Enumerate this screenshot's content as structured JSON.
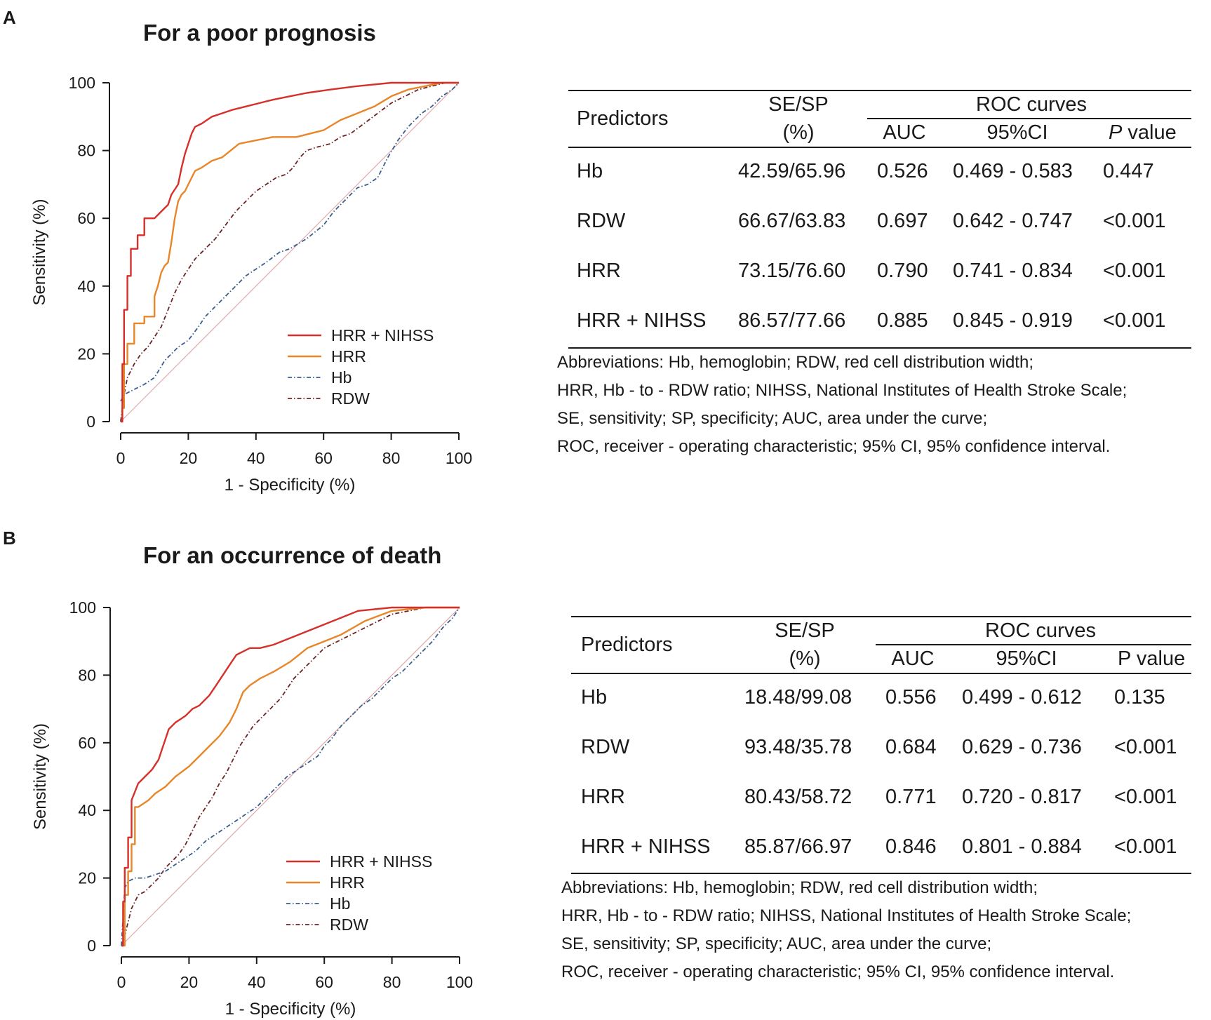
{
  "panels": [
    {
      "letter": "A",
      "title": "For a poor prognosis",
      "table": {
        "header": {
          "predictors": "Predictors",
          "sesp_line1": "SE/SP",
          "sesp_line2": "(%)",
          "roc_curves": "ROC curves",
          "auc": "AUC",
          "ci": "95%CI",
          "p_italic": "P",
          "p_rest": " value"
        },
        "rows": [
          {
            "predictor": "Hb",
            "sesp": "42.59/65.96",
            "auc": "0.526",
            "ci": "0.469 - 0.583",
            "p": "0.447"
          },
          {
            "predictor": "RDW",
            "sesp": "66.67/63.83",
            "auc": "0.697",
            "ci": "0.642 - 0.747",
            "p": "<0.001"
          },
          {
            "predictor": "HRR",
            "sesp": "73.15/76.60",
            "auc": "0.790",
            "ci": "0.741 - 0.834",
            "p": "<0.001"
          },
          {
            "predictor": "HRR + NIHSS",
            "sesp": "86.57/77.66",
            "auc": "0.885",
            "ci": "0.845 - 0.919",
            "p": "<0.001"
          }
        ],
        "abbreviations": [
          "Abbreviations: Hb, hemoglobin; RDW, red cell distribution width;",
          "HRR, Hb - to - RDW ratio; NIHSS, National Institutes of Health Stroke Scale;",
          "SE, sensitivity; SP, specificity; AUC, area under the curve;",
          "ROC, receiver - operating characteristic; 95% CI, 95% confidence interval."
        ]
      }
    },
    {
      "letter": "B",
      "title": "For an occurrence of death",
      "table": {
        "header": {
          "predictors": "Predictors",
          "sesp_line1": "SE/SP",
          "sesp_line2": "(%)",
          "roc_curves": "ROC curves",
          "auc": "AUC",
          "ci": "95%CI",
          "p_italic": "",
          "p_rest": "P value"
        },
        "rows": [
          {
            "predictor": "Hb",
            "sesp": "18.48/99.08",
            "auc": "0.556",
            "ci": "0.499 - 0.612",
            "p": "0.135"
          },
          {
            "predictor": "RDW",
            "sesp": "93.48/35.78",
            "auc": "0.684",
            "ci": "0.629 - 0.736",
            "p": "<0.001"
          },
          {
            "predictor": "HRR",
            "sesp": "80.43/58.72",
            "auc": "0.771",
            "ci": "0.720 - 0.817",
            "p": "<0.001"
          },
          {
            "predictor": "HRR + NIHSS",
            "sesp": "85.87/66.97",
            "auc": "0.846",
            "ci": "0.801 - 0.884",
            "p": "<0.001"
          }
        ],
        "abbreviations": [
          "Abbreviations: Hb, hemoglobin; RDW, red cell distribution width;",
          "HRR, Hb - to - RDW ratio; NIHSS, National Institutes of Health Stroke Scale;",
          "SE, sensitivity; SP, specificity; AUC, area under the curve;",
          "ROC, receiver - operating characteristic; 95% CI, 95% confidence interval."
        ]
      }
    }
  ],
  "chart_data": [
    {
      "type": "line",
      "title": "For a poor prognosis",
      "xlabel": "1 - Specificity (%)",
      "ylabel": "Sensitivity (%)",
      "xlim": [
        0,
        100
      ],
      "ylim": [
        0,
        100
      ],
      "xticks": [
        "0",
        "20",
        "40",
        "60",
        "80",
        "100"
      ],
      "yticks": [
        "0",
        "20",
        "40",
        "60",
        "80",
        "100"
      ],
      "legend_position": "bottom-right",
      "reference_line": {
        "x": [
          0,
          100
        ],
        "y": [
          0,
          100
        ],
        "color": "#e3a8a8"
      },
      "series": [
        {
          "name": "HRR + NIHSS",
          "color": "#d6302a",
          "dash": "solid",
          "x": [
            0,
            0.5,
            0.5,
            1,
            1,
            2,
            2,
            3,
            3,
            5,
            5,
            7,
            7,
            10,
            12,
            14,
            15,
            17,
            18,
            19,
            20,
            21,
            22,
            24,
            27,
            30,
            33,
            37,
            41,
            45,
            50,
            55,
            62,
            70,
            80,
            90,
            100
          ],
          "y": [
            0,
            0,
            17,
            17,
            33,
            33,
            43,
            43,
            51,
            51,
            55,
            55,
            60,
            60,
            62,
            64,
            67,
            70,
            75,
            79,
            82,
            85,
            87,
            88,
            90,
            91,
            92,
            93,
            94,
            95,
            96,
            97,
            98,
            99,
            100,
            100,
            100
          ]
        },
        {
          "name": "HRR",
          "color": "#e8862a",
          "dash": "solid",
          "x": [
            0,
            0.5,
            0.5,
            1,
            1,
            2,
            2,
            4,
            4,
            7,
            7,
            10,
            10,
            11,
            12,
            13,
            14,
            15,
            16,
            17,
            18,
            19,
            20,
            21,
            22,
            24,
            27,
            30,
            35,
            40,
            45,
            52,
            60,
            65,
            70,
            75,
            80,
            85,
            90,
            95,
            100
          ],
          "y": [
            0,
            0,
            4,
            4,
            17,
            17,
            23,
            23,
            29,
            29,
            31,
            31,
            37,
            40,
            44,
            46,
            47,
            53,
            60,
            65,
            67,
            68,
            70,
            72,
            74,
            75,
            77,
            78,
            82,
            83,
            84,
            84,
            86,
            89,
            91,
            93,
            96,
            98,
            99,
            100,
            100
          ]
        },
        {
          "name": "Hb",
          "color": "#3b5f8c",
          "dash": "dashdot",
          "x": [
            0,
            1,
            3,
            5,
            7,
            10,
            13,
            15,
            17,
            20,
            23,
            25,
            28,
            31,
            34,
            37,
            40,
            43,
            47,
            50,
            55,
            60,
            63,
            67,
            70,
            73,
            76,
            79,
            82,
            85,
            89,
            92,
            95,
            98,
            100
          ],
          "y": [
            6,
            8,
            9,
            10,
            11,
            13,
            18,
            20,
            22,
            24,
            28,
            31,
            34,
            37,
            40,
            43,
            45,
            47,
            50,
            51,
            54,
            58,
            62,
            66,
            69,
            70,
            72,
            78,
            83,
            87,
            91,
            93,
            96,
            98,
            100
          ]
        },
        {
          "name": "RDW",
          "color": "#6b2424",
          "dash": "dashdot",
          "x": [
            0,
            1,
            2,
            4,
            6,
            8,
            10,
            12,
            14,
            16,
            18,
            20,
            22,
            25,
            28,
            31,
            34,
            37,
            40,
            43,
            46,
            49,
            51,
            53,
            55,
            58,
            62,
            65,
            68,
            72,
            76,
            80,
            84,
            88,
            92,
            96,
            100
          ],
          "y": [
            0,
            8,
            13,
            17,
            20,
            22,
            25,
            28,
            33,
            38,
            42,
            45,
            48,
            51,
            54,
            58,
            62,
            65,
            68,
            70,
            72,
            73,
            75,
            78,
            80,
            81,
            82,
            84,
            85,
            88,
            91,
            94,
            96,
            98,
            99,
            100,
            100
          ]
        }
      ]
    },
    {
      "type": "line",
      "title": "For an occurrence of death",
      "xlabel": "1 - Specificity (%)",
      "ylabel": "Sensitivity (%)",
      "xlim": [
        0,
        100
      ],
      "ylim": [
        0,
        100
      ],
      "xticks": [
        "0",
        "20",
        "40",
        "60",
        "80",
        "100"
      ],
      "yticks": [
        "0",
        "20",
        "40",
        "60",
        "80",
        "100"
      ],
      "legend_position": "bottom-right",
      "reference_line": {
        "x": [
          0,
          100
        ],
        "y": [
          0,
          100
        ],
        "color": "#e3a8a8"
      },
      "series": [
        {
          "name": "HRR + NIHSS",
          "color": "#d6302a",
          "dash": "solid",
          "x": [
            0,
            0.5,
            0.5,
            1,
            1,
            2,
            2,
            3,
            3,
            5,
            7,
            9,
            11,
            12,
            13,
            14,
            16,
            19,
            21,
            23,
            26,
            28,
            30,
            32,
            34,
            36,
            38,
            41,
            45,
            50,
            55,
            60,
            65,
            70,
            80,
            90,
            100
          ],
          "y": [
            0,
            0,
            13,
            13,
            23,
            23,
            32,
            32,
            43,
            48,
            50,
            52,
            55,
            58,
            61,
            64,
            66,
            68,
            70,
            71,
            74,
            77,
            80,
            83,
            86,
            87,
            88,
            88,
            89,
            91,
            93,
            95,
            97,
            99,
            100,
            100,
            100
          ]
        },
        {
          "name": "HRR",
          "color": "#e8862a",
          "dash": "solid",
          "x": [
            0,
            1,
            1,
            2,
            2,
            3,
            3,
            4,
            4,
            5,
            8,
            10,
            13,
            16,
            20,
            23,
            26,
            29,
            32,
            34,
            36,
            38,
            41,
            45,
            50,
            55,
            60,
            65,
            72,
            80,
            90,
            100
          ],
          "y": [
            0,
            0,
            15,
            15,
            22,
            22,
            30,
            30,
            41,
            41,
            43,
            45,
            47,
            50,
            53,
            56,
            59,
            62,
            66,
            70,
            75,
            77,
            79,
            81,
            84,
            88,
            90,
            92,
            96,
            99,
            100,
            100
          ]
        },
        {
          "name": "Hb",
          "color": "#3b5f8c",
          "dash": "dashdot",
          "x": [
            0,
            1,
            2,
            4,
            7,
            10,
            13,
            16,
            19,
            22,
            25,
            28,
            31,
            34,
            37,
            40,
            43,
            46,
            49,
            52,
            55,
            58,
            60,
            62,
            65,
            68,
            71,
            74,
            77,
            80,
            83,
            86,
            89,
            92,
            95,
            98,
            100
          ],
          "y": [
            0,
            17,
            19,
            20,
            20,
            21,
            22,
            24,
            26,
            28,
            31,
            33,
            35,
            37,
            39,
            41,
            44,
            47,
            50,
            52,
            54,
            56,
            59,
            61,
            65,
            68,
            71,
            73,
            76,
            79,
            81,
            84,
            87,
            90,
            94,
            97,
            100
          ]
        },
        {
          "name": "RDW",
          "color": "#6b2424",
          "dash": "dashdot",
          "x": [
            0,
            1,
            2,
            3,
            5,
            7,
            9,
            11,
            13,
            15,
            17,
            19,
            21,
            23,
            25,
            27,
            29,
            31,
            33,
            35,
            37,
            39,
            41,
            43,
            45,
            47,
            49,
            51,
            53,
            55,
            57,
            60,
            64,
            68,
            72,
            76,
            80,
            85,
            90,
            95,
            100
          ],
          "y": [
            0,
            3,
            7,
            11,
            15,
            16,
            18,
            20,
            23,
            25,
            27,
            30,
            34,
            38,
            41,
            44,
            48,
            51,
            55,
            59,
            62,
            65,
            67,
            69,
            71,
            73,
            76,
            79,
            81,
            83,
            85,
            88,
            90,
            92,
            94,
            96,
            98,
            99,
            100,
            100,
            100
          ]
        }
      ]
    }
  ]
}
